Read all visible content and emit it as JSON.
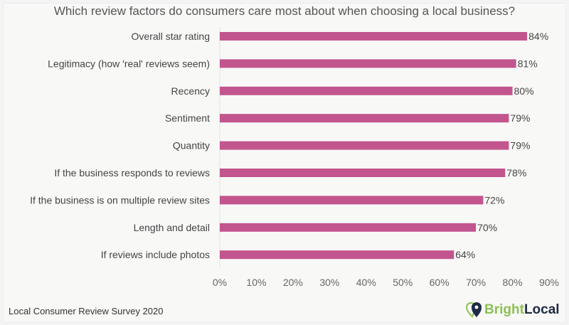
{
  "chart_data": {
    "type": "bar",
    "orientation": "horizontal",
    "title": "Which review factors do consumers care most about when choosing a local business?",
    "categories": [
      "Overall star rating",
      "Legitimacy (how 'real' reviews seem)",
      "Recency",
      "Sentiment",
      "Quantity",
      "If the business responds to reviews",
      "If the business is on multiple review sites",
      "Length and detail",
      "If reviews include photos"
    ],
    "values": [
      84,
      81,
      80,
      79,
      79,
      78,
      72,
      70,
      64
    ],
    "data_labels": [
      "84%",
      "81%",
      "80%",
      "79%",
      "79%",
      "78%",
      "72%",
      "70%",
      "64%"
    ],
    "xlim": [
      0,
      90
    ],
    "x_ticks": [
      "0%",
      "10%",
      "20%",
      "30%",
      "40%",
      "50%",
      "60%",
      "70%",
      "80%",
      "90%"
    ],
    "bar_color": "#c2558e",
    "grid": false
  },
  "footer": {
    "source": "Local Consumer Review Survey 2020",
    "logo_bright": "Bright",
    "logo_local": "Local"
  },
  "colors": {
    "logo_green": "#8cc152",
    "logo_navy": "#1f2a44"
  }
}
